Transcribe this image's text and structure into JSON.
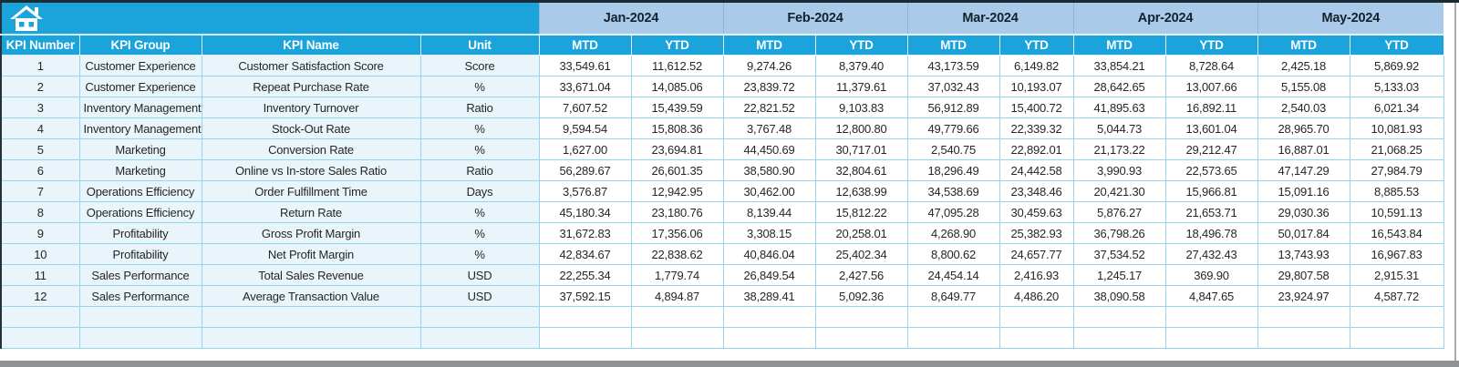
{
  "header": {
    "left_columns": [
      "KPI Number",
      "KPI Group",
      "KPI Name",
      "Unit"
    ],
    "months": [
      "Jan-2024",
      "Feb-2024",
      "Mar-2024",
      "Apr-2024",
      "May-2024"
    ],
    "sub": [
      "MTD",
      "YTD",
      "MTD",
      "YTD",
      "MTD",
      "YTD",
      "MTD",
      "YTD",
      "MTD",
      "YTD"
    ]
  },
  "colors": {
    "header_cyan": "#1BA3DB",
    "month_band_blue": "#A9CBE9",
    "row_tint": "#EAF5FB",
    "grid_line": "#93D7EC"
  },
  "rows": [
    {
      "number": "1",
      "group": "Customer Experience",
      "name": "Customer Satisfaction Score",
      "unit": "Score",
      "values": [
        "33,549.61",
        "11,612.52",
        "9,274.26",
        "8,379.40",
        "43,173.59",
        "6,149.82",
        "33,854.21",
        "8,728.64",
        "2,425.18",
        "5,869.92"
      ]
    },
    {
      "number": "2",
      "group": "Customer Experience",
      "name": "Repeat Purchase Rate",
      "unit": "%",
      "values": [
        "33,671.04",
        "14,085.06",
        "23,839.72",
        "11,379.61",
        "37,032.43",
        "10,193.07",
        "28,642.65",
        "13,007.66",
        "5,155.08",
        "5,133.03"
      ]
    },
    {
      "number": "3",
      "group": "Inventory Management",
      "name": "Inventory Turnover",
      "unit": "Ratio",
      "values": [
        "7,607.52",
        "15,439.59",
        "22,821.52",
        "9,103.83",
        "56,912.89",
        "15,400.72",
        "41,895.63",
        "16,892.11",
        "2,540.03",
        "6,021.34"
      ]
    },
    {
      "number": "4",
      "group": "Inventory Management",
      "name": "Stock-Out Rate",
      "unit": "%",
      "values": [
        "9,594.54",
        "15,808.36",
        "3,767.48",
        "12,800.80",
        "49,779.66",
        "22,339.32",
        "5,044.73",
        "13,601.04",
        "28,965.70",
        "10,081.93"
      ]
    },
    {
      "number": "5",
      "group": "Marketing",
      "name": "Conversion Rate",
      "unit": "%",
      "values": [
        "1,627.00",
        "23,694.81",
        "44,450.69",
        "30,717.01",
        "2,540.75",
        "22,892.01",
        "21,173.22",
        "29,212.47",
        "16,887.01",
        "21,068.25"
      ]
    },
    {
      "number": "6",
      "group": "Marketing",
      "name": "Online vs In-store Sales Ratio",
      "unit": "Ratio",
      "values": [
        "56,289.67",
        "26,601.35",
        "38,580.90",
        "32,804.61",
        "18,296.49",
        "24,442.58",
        "3,990.93",
        "22,573.65",
        "47,147.29",
        "27,984.79"
      ]
    },
    {
      "number": "7",
      "group": "Operations Efficiency",
      "name": "Order Fulfillment Time",
      "unit": "Days",
      "values": [
        "3,576.87",
        "12,942.95",
        "30,462.00",
        "12,638.99",
        "34,538.69",
        "23,348.46",
        "20,421.30",
        "15,966.81",
        "15,091.16",
        "8,885.53"
      ]
    },
    {
      "number": "8",
      "group": "Operations Efficiency",
      "name": "Return Rate",
      "unit": "%",
      "values": [
        "45,180.34",
        "23,180.76",
        "8,139.44",
        "15,812.22",
        "47,095.28",
        "30,459.63",
        "5,876.27",
        "21,653.71",
        "29,030.36",
        "10,591.13"
      ]
    },
    {
      "number": "9",
      "group": "Profitability",
      "name": "Gross Profit Margin",
      "unit": "%",
      "values": [
        "31,672.83",
        "17,356.06",
        "3,308.15",
        "20,258.01",
        "4,268.90",
        "25,382.93",
        "36,798.26",
        "18,496.78",
        "50,017.84",
        "16,543.84"
      ]
    },
    {
      "number": "10",
      "group": "Profitability",
      "name": "Net Profit Margin",
      "unit": "%",
      "values": [
        "42,834.67",
        "22,838.62",
        "40,846.04",
        "25,402.34",
        "8,800.62",
        "24,657.77",
        "37,534.52",
        "27,432.43",
        "13,743.93",
        "16,967.83"
      ]
    },
    {
      "number": "11",
      "group": "Sales Performance",
      "name": "Total Sales Revenue",
      "unit": "USD",
      "values": [
        "22,255.34",
        "1,779.74",
        "26,849.54",
        "2,427.56",
        "24,454.14",
        "2,416.93",
        "1,245.17",
        "369.90",
        "29,807.58",
        "2,915.31"
      ]
    },
    {
      "number": "12",
      "group": "Sales Performance",
      "name": "Average Transaction Value",
      "unit": "USD",
      "values": [
        "37,592.15",
        "4,894.87",
        "38,289.41",
        "5,092.36",
        "8,649.77",
        "4,486.20",
        "38,090.58",
        "4,847.65",
        "23,924.97",
        "4,587.72"
      ]
    }
  ],
  "empty_row_count": 2
}
